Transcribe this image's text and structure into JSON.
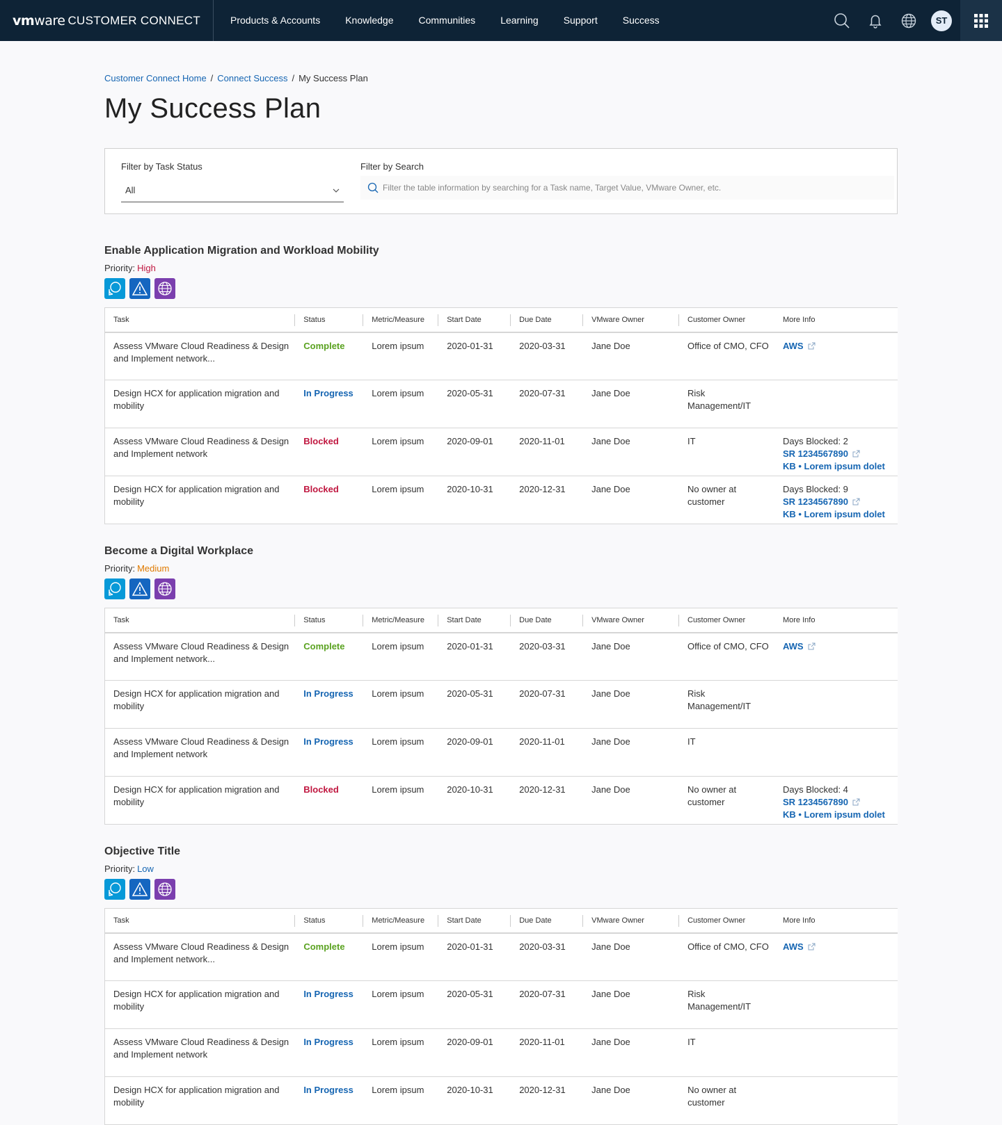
{
  "header": {
    "logo_vm": "vm",
    "logo_ware": "ware",
    "logo_product": "CUSTOMER CONNECT",
    "nav": [
      "Products & Accounts",
      "Knowledge",
      "Communities",
      "Learning",
      "Support",
      "Success"
    ],
    "avatar_initials": "ST"
  },
  "breadcrumb": {
    "home": "Customer Connect Home",
    "success": "Connect Success",
    "current": "My Success Plan"
  },
  "page_title": "My Success Plan",
  "filters": {
    "status_label": "Filter by Task Status",
    "status_value": "All",
    "search_label": "Filter by Search",
    "search_placeholder": "Filter the table information by searching for a Task name, Target Value, VMware Owner, etc."
  },
  "table_headers": [
    "Task",
    "Status",
    "Metric/Measure",
    "Start Date",
    "Due Date",
    "VMware Owner",
    "Customer Owner",
    "More Info"
  ],
  "priority_label": "Priority:",
  "objectives": [
    {
      "title": "Enable Application Migration and Workload Mobility",
      "priority": "High",
      "rows": [
        {
          "task": "Assess VMware Cloud Readiness & Design and Implement network...",
          "status": "Complete",
          "metric": "Lorem ipsum",
          "start": "2020-01-31",
          "due": "2020-03-31",
          "vm_owner": "Jane Doe",
          "cust_owner": "Office of CMO, CFO",
          "more": {
            "link": "AWS"
          }
        },
        {
          "task": "Design HCX for application migration and mobility",
          "status": "In Progress",
          "metric": "Lorem ipsum",
          "start": "2020-05-31",
          "due": "2020-07-31",
          "vm_owner": "Jane Doe",
          "cust_owner": "Risk Management/IT",
          "more": null
        },
        {
          "task": "Assess VMware Cloud Readiness & Design and Implement network",
          "status": "Blocked",
          "metric": "Lorem ipsum",
          "start": "2020-09-01",
          "due": "2020-11-01",
          "vm_owner": "Jane Doe",
          "cust_owner": "IT",
          "more": {
            "days": "Days Blocked: 2",
            "sr": "SR 1234567890",
            "kb": "KB • Lorem ipsum dolet"
          }
        },
        {
          "task": "Design HCX for application migration and mobility",
          "status": "Blocked",
          "metric": "Lorem ipsum",
          "start": "2020-10-31",
          "due": "2020-12-31",
          "vm_owner": "Jane Doe",
          "cust_owner": "No owner at customer",
          "more": {
            "days": "Days Blocked: 9",
            "sr": "SR 1234567890",
            "kb": "KB • Lorem ipsum dolet"
          }
        }
      ]
    },
    {
      "title": "Become a Digital Workplace",
      "priority": "Medium",
      "rows": [
        {
          "task": "Assess VMware Cloud Readiness & Design and Implement network...",
          "status": "Complete",
          "metric": "Lorem ipsum",
          "start": "2020-01-31",
          "due": "2020-03-31",
          "vm_owner": "Jane Doe",
          "cust_owner": "Office of CMO, CFO",
          "more": {
            "link": "AWS"
          }
        },
        {
          "task": "Design HCX for application migration and mobility",
          "status": "In Progress",
          "metric": "Lorem ipsum",
          "start": "2020-05-31",
          "due": "2020-07-31",
          "vm_owner": "Jane Doe",
          "cust_owner": "Risk Management/IT",
          "more": null
        },
        {
          "task": "Assess VMware Cloud Readiness & Design and Implement network",
          "status": "In Progress",
          "metric": "Lorem ipsum",
          "start": "2020-09-01",
          "due": "2020-11-01",
          "vm_owner": "Jane Doe",
          "cust_owner": "IT",
          "more": null
        },
        {
          "task": "Design HCX for application migration and mobility",
          "status": "Blocked",
          "metric": "Lorem ipsum",
          "start": "2020-10-31",
          "due": "2020-12-31",
          "vm_owner": "Jane Doe",
          "cust_owner": "No owner at customer",
          "more": {
            "days": "Days Blocked: 4",
            "sr": "SR 1234567890",
            "kb": "KB • Lorem ipsum dolet"
          }
        }
      ]
    },
    {
      "title": "Objective Title",
      "priority": "Low",
      "rows": [
        {
          "task": "Assess VMware Cloud Readiness & Design and Implement network...",
          "status": "Complete",
          "metric": "Lorem ipsum",
          "start": "2020-01-31",
          "due": "2020-03-31",
          "vm_owner": "Jane Doe",
          "cust_owner": "Office of CMO, CFO",
          "more": {
            "link": "AWS"
          }
        },
        {
          "task": "Design HCX for application migration and mobility",
          "status": "In Progress",
          "metric": "Lorem ipsum",
          "start": "2020-05-31",
          "due": "2020-07-31",
          "vm_owner": "Jane Doe",
          "cust_owner": "Risk Management/IT",
          "more": null
        },
        {
          "task": "Assess VMware Cloud Readiness & Design and Implement network",
          "status": "In Progress",
          "metric": "Lorem ipsum",
          "start": "2020-09-01",
          "due": "2020-11-01",
          "vm_owner": "Jane Doe",
          "cust_owner": "IT",
          "more": null
        },
        {
          "task": "Design HCX for application migration and mobility",
          "status": "In Progress",
          "metric": "Lorem ipsum",
          "start": "2020-10-31",
          "due": "2020-12-31",
          "vm_owner": "Jane Doe",
          "cust_owner": "No owner at customer",
          "more": null
        }
      ]
    }
  ],
  "colors": {
    "header_bg": "#0e2336",
    "link": "#1565b2",
    "complete": "#5aa220",
    "blocked": "#c0163f",
    "medium": "#e07a00"
  },
  "icons": [
    "search-icon",
    "bell-icon",
    "globe-icon",
    "apps-grid-icon",
    "chevron-down-icon",
    "chat-bubbles-icon",
    "warning-icon",
    "web-globe-icon",
    "external-link-icon"
  ]
}
